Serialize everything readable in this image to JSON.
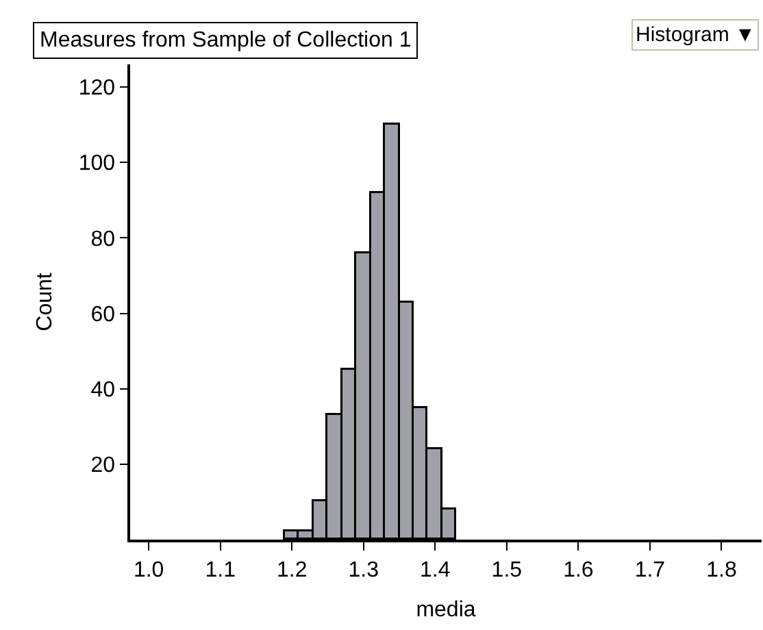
{
  "chart_data": {
    "type": "histogram",
    "title": "Measures from Sample of Collection 1",
    "xlabel": "media",
    "ylabel": "Count",
    "annotations": [
      "Histogram ▼"
    ],
    "bins": [
      1.19,
      1.21,
      1.23,
      1.25,
      1.27,
      1.29,
      1.31,
      1.33,
      1.35,
      1.37,
      1.39,
      1.41,
      1.43
    ],
    "values": [
      2,
      2,
      10,
      33,
      45,
      76,
      92,
      110,
      63,
      35,
      24,
      8
    ],
    "color": "#a0a0a8",
    "xlim": [
      0.974,
      1.856
    ],
    "xticks": [
      {
        "value": 1.0,
        "label": "1.0"
      },
      1.1,
      1.2,
      1.3,
      1.4,
      1.5,
      1.6,
      1.7,
      1.8
    ],
    "ylim": [
      0,
      126
    ],
    "yticks": [
      20,
      40,
      60,
      80,
      100,
      120
    ]
  }
}
